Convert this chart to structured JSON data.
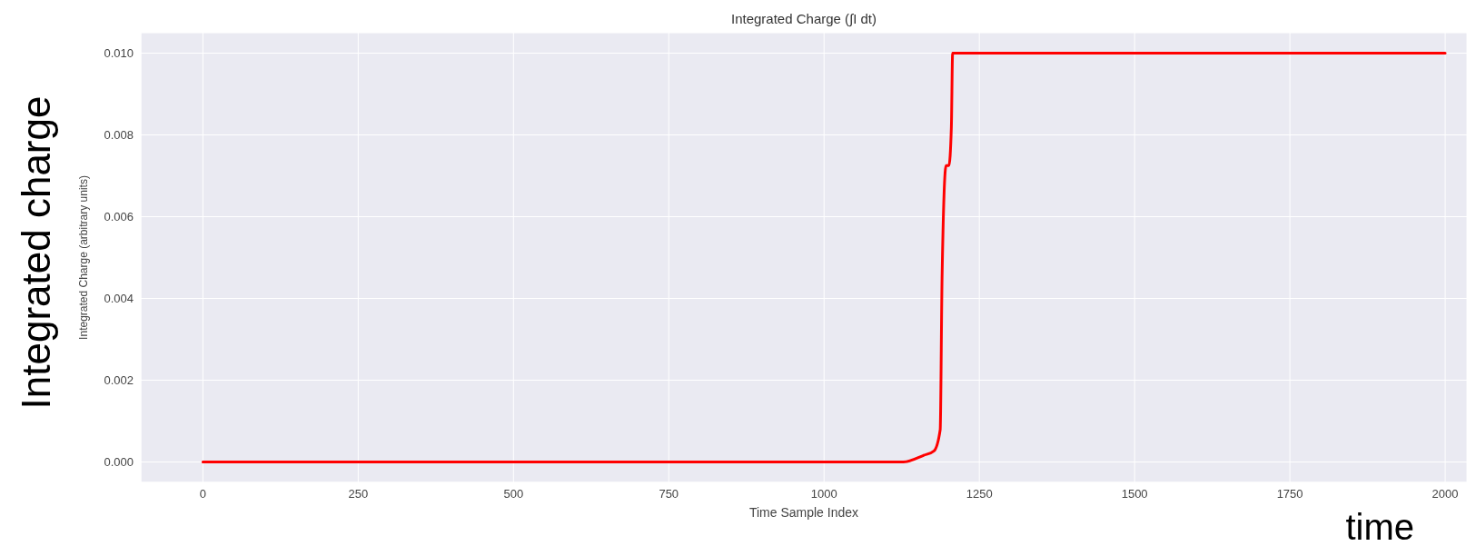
{
  "chart_data": {
    "type": "line",
    "title": "Integrated Charge (∫I dt)",
    "xlabel": "Time Sample Index",
    "ylabel": "Integrated Charge (arbitrary units)",
    "annotations": [
      "Integrated charge",
      "time"
    ],
    "series": [
      {
        "color": "#ff0000",
        "x": [
          0,
          1128,
          1160,
          1177,
          1187,
          1190,
          1196.5,
          1201,
          1205,
          1207,
          2000
        ],
        "values": [
          0,
          0,
          0.00016,
          0.00027,
          0.00079,
          0.0045,
          0.00725,
          0.00725,
          0.0082,
          0.01,
          0.01
        ]
      }
    ],
    "xlim": [
      -100,
      2035
    ],
    "xticks": [
      0,
      250,
      500,
      750,
      1000,
      1250,
      1500,
      1750,
      2000
    ],
    "ylim": [
      -0.0005,
      0.0105
    ],
    "yticks": [
      {
        "value": 0,
        "label": "0.000"
      },
      {
        "value": 0.002,
        "label": "0.002"
      },
      {
        "value": 0.004,
        "label": "0.004"
      },
      {
        "value": 0.006,
        "label": "0.006"
      },
      {
        "value": 0.008,
        "label": "0.008"
      },
      {
        "value": 0.01,
        "label": "0.010"
      }
    ],
    "grid": true
  }
}
